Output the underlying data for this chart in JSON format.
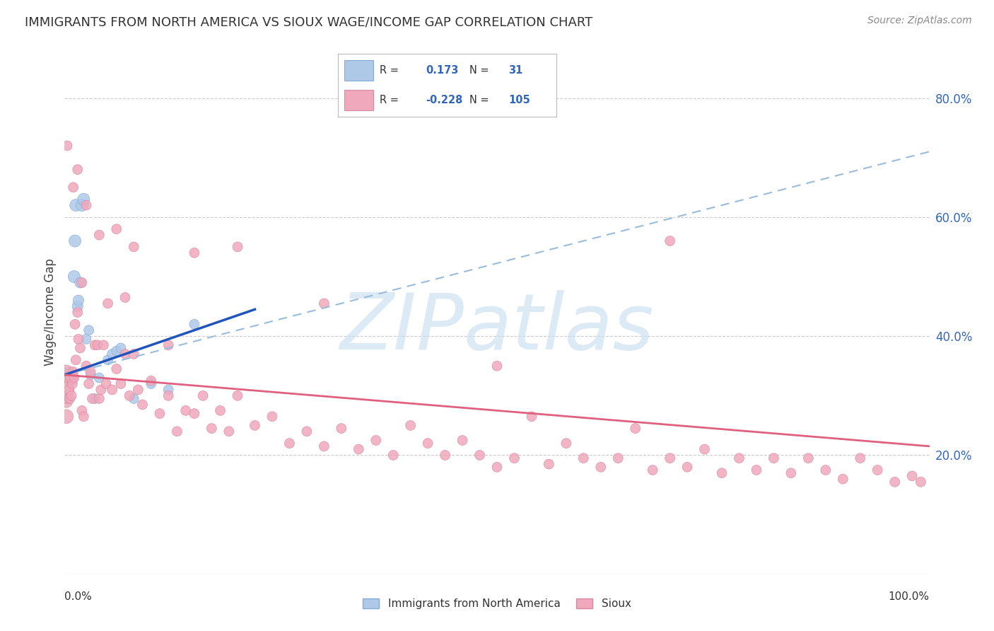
{
  "title": "IMMIGRANTS FROM NORTH AMERICA VS SIOUX WAGE/INCOME GAP CORRELATION CHART",
  "source": "Source: ZipAtlas.com",
  "ylabel": "Wage/Income Gap",
  "ytick_labels": [
    "20.0%",
    "40.0%",
    "60.0%",
    "80.0%"
  ],
  "ytick_values": [
    0.2,
    0.4,
    0.6,
    0.8
  ],
  "legend_entries": [
    {
      "label": "Immigrants from North America",
      "R": 0.173,
      "N": 31,
      "color": "#a8c4e0"
    },
    {
      "label": "Sioux",
      "R": -0.228,
      "N": 105,
      "color": "#f4a8b8"
    }
  ],
  "blue_series": {
    "x": [
      0.001,
      0.002,
      0.003,
      0.004,
      0.005,
      0.006,
      0.007,
      0.008,
      0.009,
      0.01,
      0.011,
      0.012,
      0.013,
      0.015,
      0.016,
      0.018,
      0.02,
      0.022,
      0.025,
      0.028,
      0.03,
      0.035,
      0.04,
      0.05,
      0.055,
      0.06,
      0.065,
      0.08,
      0.1,
      0.12,
      0.15
    ],
    "y": [
      0.335,
      0.33,
      0.33,
      0.33,
      0.335,
      0.34,
      0.33,
      0.325,
      0.33,
      0.33,
      0.5,
      0.56,
      0.62,
      0.45,
      0.46,
      0.49,
      0.62,
      0.63,
      0.395,
      0.41,
      0.335,
      0.295,
      0.33,
      0.36,
      0.37,
      0.375,
      0.38,
      0.295,
      0.32,
      0.31,
      0.42
    ],
    "sizes": [
      200,
      150,
      100,
      100,
      120,
      100,
      100,
      100,
      120,
      100,
      150,
      150,
      150,
      120,
      120,
      120,
      150,
      150,
      100,
      100,
      100,
      100,
      100,
      100,
      100,
      100,
      100,
      100,
      100,
      100,
      100
    ]
  },
  "pink_series": {
    "x": [
      0.001,
      0.001,
      0.002,
      0.002,
      0.003,
      0.004,
      0.005,
      0.006,
      0.007,
      0.008,
      0.009,
      0.01,
      0.011,
      0.012,
      0.013,
      0.015,
      0.016,
      0.018,
      0.02,
      0.022,
      0.025,
      0.028,
      0.03,
      0.032,
      0.035,
      0.038,
      0.04,
      0.042,
      0.045,
      0.048,
      0.05,
      0.055,
      0.06,
      0.065,
      0.07,
      0.075,
      0.08,
      0.085,
      0.09,
      0.1,
      0.11,
      0.12,
      0.13,
      0.14,
      0.15,
      0.16,
      0.17,
      0.18,
      0.19,
      0.2,
      0.22,
      0.24,
      0.26,
      0.28,
      0.3,
      0.32,
      0.34,
      0.36,
      0.38,
      0.4,
      0.42,
      0.44,
      0.46,
      0.48,
      0.5,
      0.52,
      0.54,
      0.56,
      0.58,
      0.6,
      0.62,
      0.64,
      0.66,
      0.68,
      0.7,
      0.72,
      0.74,
      0.76,
      0.78,
      0.8,
      0.82,
      0.84,
      0.86,
      0.88,
      0.9,
      0.92,
      0.94,
      0.96,
      0.98,
      0.99,
      0.015,
      0.025,
      0.04,
      0.06,
      0.08,
      0.15,
      0.2,
      0.3,
      0.5,
      0.7,
      0.003,
      0.01,
      0.02,
      0.07,
      0.12
    ],
    "y": [
      0.335,
      0.31,
      0.29,
      0.265,
      0.295,
      0.33,
      0.31,
      0.295,
      0.33,
      0.3,
      0.32,
      0.34,
      0.33,
      0.42,
      0.36,
      0.44,
      0.395,
      0.38,
      0.275,
      0.265,
      0.35,
      0.32,
      0.34,
      0.295,
      0.385,
      0.385,
      0.295,
      0.31,
      0.385,
      0.32,
      0.455,
      0.31,
      0.345,
      0.32,
      0.37,
      0.3,
      0.37,
      0.31,
      0.285,
      0.325,
      0.27,
      0.3,
      0.24,
      0.275,
      0.27,
      0.3,
      0.245,
      0.275,
      0.24,
      0.3,
      0.25,
      0.265,
      0.22,
      0.24,
      0.215,
      0.245,
      0.21,
      0.225,
      0.2,
      0.25,
      0.22,
      0.2,
      0.225,
      0.2,
      0.18,
      0.195,
      0.265,
      0.185,
      0.22,
      0.195,
      0.18,
      0.195,
      0.245,
      0.175,
      0.195,
      0.18,
      0.21,
      0.17,
      0.195,
      0.175,
      0.195,
      0.17,
      0.195,
      0.175,
      0.16,
      0.195,
      0.175,
      0.155,
      0.165,
      0.155,
      0.68,
      0.62,
      0.57,
      0.58,
      0.55,
      0.54,
      0.55,
      0.455,
      0.35,
      0.56,
      0.72,
      0.65,
      0.49,
      0.465,
      0.385
    ],
    "sizes": [
      400,
      300,
      150,
      200,
      100,
      100,
      100,
      100,
      100,
      100,
      100,
      100,
      100,
      100,
      100,
      100,
      100,
      100,
      100,
      100,
      100,
      100,
      100,
      100,
      100,
      100,
      100,
      100,
      100,
      100,
      100,
      100,
      100,
      100,
      100,
      100,
      100,
      100,
      100,
      100,
      100,
      100,
      100,
      100,
      100,
      100,
      100,
      100,
      100,
      100,
      100,
      100,
      100,
      100,
      100,
      100,
      100,
      100,
      100,
      100,
      100,
      100,
      100,
      100,
      100,
      100,
      100,
      100,
      100,
      100,
      100,
      100,
      100,
      100,
      100,
      100,
      100,
      100,
      100,
      100,
      100,
      100,
      100,
      100,
      100,
      100,
      100,
      100,
      100,
      100,
      100,
      100,
      100,
      100,
      100,
      100,
      100,
      100,
      100,
      100,
      100,
      100,
      100,
      100,
      100
    ]
  },
  "blue_solid_line": {
    "x0": 0.0,
    "x1": 0.22,
    "y0": 0.335,
    "y1": 0.445
  },
  "blue_dash_line": {
    "x0": 0.0,
    "x1": 1.0,
    "y0": 0.335,
    "y1": 0.71
  },
  "pink_solid_line": {
    "x0": 0.0,
    "x1": 1.0,
    "y0": 0.335,
    "y1": 0.215
  },
  "watermark": "ZIPatlas",
  "watermark_color": "#c8dff0",
  "background_color": "#ffffff",
  "grid_color": "#cccccc",
  "xlim": [
    0.0,
    1.0
  ],
  "ylim": [
    0.0,
    0.88
  ]
}
